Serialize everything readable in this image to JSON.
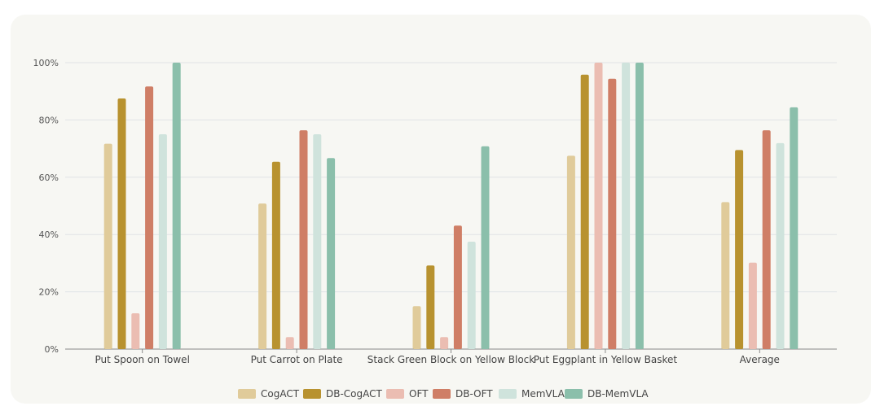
{
  "chart_data": {
    "type": "bar",
    "categories": [
      "Put Spoon on Towel",
      "Put Carrot on Plate",
      "Stack Green Block on Yellow Block",
      "Put Eggplant in Yellow Basket",
      "Average"
    ],
    "series": [
      {
        "name": "CogACT",
        "color": "#e0cb9a",
        "values": [
          71.7,
          50.8,
          15.0,
          67.5,
          51.3
        ]
      },
      {
        "name": "DB-CogACT",
        "color": "#b8922f",
        "values": [
          87.5,
          65.4,
          29.2,
          95.8,
          69.5
        ]
      },
      {
        "name": "OFT",
        "color": "#ebbdb2",
        "values": [
          12.5,
          4.2,
          4.2,
          100,
          30.2
        ]
      },
      {
        "name": "DB-OFT",
        "color": "#cf7e66",
        "values": [
          91.7,
          76.4,
          43.1,
          94.4,
          76.4
        ]
      },
      {
        "name": "MemVLA",
        "color": "#cfe3dc",
        "values": [
          75.0,
          75.0,
          37.5,
          100,
          71.9
        ]
      },
      {
        "name": "DB-MemVLA",
        "color": "#8bbfab",
        "values": [
          100,
          66.7,
          70.8,
          100,
          84.4
        ]
      }
    ],
    "yticks": [
      "0%",
      "20%",
      "40%",
      "60%",
      "80%",
      "100%"
    ],
    "ylim": [
      0,
      100
    ],
    "grid": true,
    "legend_position": "bottom"
  }
}
